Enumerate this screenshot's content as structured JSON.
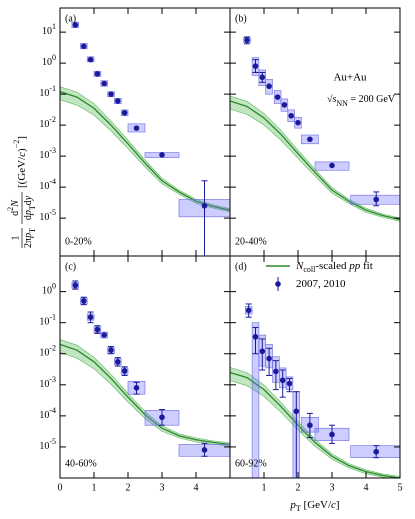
{
  "axes_labels": {
    "ylabel": {
      "num1": "1",
      "den1": [
        {
          "text": "2π"
        },
        {
          "text": "p",
          "italic": true
        },
        {
          "text": "T",
          "sub": true
        }
      ],
      "num2": [
        {
          "text": "d"
        },
        {
          "text": "2",
          "sup": true
        },
        {
          "text": "N",
          "italic": true
        }
      ],
      "den2": [
        {
          "text": "d"
        },
        {
          "text": "p",
          "italic": true
        },
        {
          "text": "T",
          "sub": true
        },
        {
          "text": "d"
        },
        {
          "text": "y",
          "italic": true
        }
      ],
      "unit": [
        {
          "text": "[(GeV/"
        },
        {
          "text": "c",
          "italic": true
        },
        {
          "text": ")"
        },
        {
          "text": "−2",
          "sup": true
        },
        {
          "text": "]"
        }
      ]
    },
    "xlabel": [
      {
        "text": "p",
        "italic": true
      },
      {
        "text": "T",
        "sub": true
      },
      {
        "text": " [GeV/"
      },
      {
        "text": "c",
        "italic": true
      },
      {
        "text": "]"
      }
    ]
  },
  "chart_data": [
    {
      "type": "scatter",
      "panel": "(a)",
      "centrality": "0-20%",
      "xlim": [
        0,
        5
      ],
      "ylim": [
        6e-07,
        60
      ],
      "x_tick_labels": false,
      "y_tick_labels": true,
      "xticks": [
        0,
        1,
        2,
        3,
        4
      ],
      "yticks": [
        {
          "value": 10,
          "label": "10^1"
        },
        {
          "value": 1,
          "label": "10^0"
        },
        {
          "value": 0.1,
          "label": "10^-1"
        },
        {
          "value": 0.01,
          "label": "10^-2"
        },
        {
          "value": 0.001,
          "label": "10^-3"
        },
        {
          "value": 0.0001,
          "label": "10^-4"
        },
        {
          "value": 1e-05,
          "label": "10^-5"
        }
      ],
      "x": [
        0.45,
        0.7,
        0.9,
        1.1,
        1.3,
        1.5,
        1.7,
        1.9,
        2.25,
        3.0,
        4.25
      ],
      "values": [
        17,
        3.5,
        1.3,
        0.45,
        0.22,
        0.1,
        0.06,
        0.025,
        0.008,
        0.0011,
        2.5e-05
      ],
      "box_halfwidth": [
        0.1,
        0.1,
        0.1,
        0.1,
        0.1,
        0.1,
        0.1,
        0.1,
        0.25,
        0.5,
        0.75
      ],
      "sys_low": [
        14,
        2.9,
        1.1,
        0.37,
        0.18,
        0.082,
        0.049,
        0.02,
        0.006,
        0.0009,
        1.1e-05
      ],
      "sys_high": [
        21,
        4.3,
        1.6,
        0.55,
        0.27,
        0.12,
        0.073,
        0.031,
        0.011,
        0.0013,
        4e-05
      ],
      "stat_low": [
        null,
        null,
        null,
        null,
        null,
        null,
        null,
        null,
        null,
        null,
        1e-07
      ],
      "stat_high": [
        null,
        null,
        null,
        null,
        null,
        null,
        null,
        null,
        null,
        null,
        0.00016
      ],
      "fit": {
        "x": [
          0,
          0.5,
          1,
          1.5,
          2,
          2.5,
          3,
          3.5,
          4,
          4.5,
          5
        ],
        "values": [
          0.12,
          0.08,
          0.035,
          0.01,
          0.0025,
          0.0006,
          0.00016,
          7e-05,
          3.5e-05,
          2.4e-05,
          1.8e-05
        ],
        "band_rel": [
          0.45,
          0.45,
          0.4,
          0.35,
          0.3,
          0.25,
          0.2,
          0.15,
          0.15,
          0.12,
          0.12
        ]
      }
    },
    {
      "type": "scatter",
      "panel": "(b)",
      "centrality": "20-40%",
      "xlim": [
        0,
        5
      ],
      "ylim": [
        6e-07,
        60
      ],
      "x_tick_labels": false,
      "y_tick_labels": false,
      "xticks": [
        1,
        2,
        3,
        4,
        5
      ],
      "yticks": [
        10,
        1,
        0.1,
        0.01,
        0.001,
        0.0001,
        1e-05
      ],
      "x": [
        0.5,
        0.75,
        0.95,
        1.15,
        1.4,
        1.6,
        1.8,
        2.0,
        2.35,
        3.0,
        4.3
      ],
      "values": [
        5.5,
        0.8,
        0.35,
        0.18,
        0.08,
        0.045,
        0.02,
        0.012,
        0.0035,
        0.0005,
        4e-05
      ],
      "box_halfwidth": [
        0.1,
        0.1,
        0.1,
        0.1,
        0.1,
        0.1,
        0.1,
        0.1,
        0.25,
        0.5,
        0.75
      ],
      "sys_low": [
        4.6,
        0.4,
        0.19,
        0.1,
        0.05,
        0.028,
        0.013,
        0.008,
        0.0025,
        0.00035,
        2.8e-05
      ],
      "sys_high": [
        6.6,
        1.5,
        0.6,
        0.3,
        0.13,
        0.07,
        0.031,
        0.018,
        0.0048,
        0.00065,
        5.5e-05
      ],
      "stat_low": [
        4.2,
        0.5,
        0.24,
        null,
        null,
        null,
        null,
        null,
        null,
        null,
        2.5e-05
      ],
      "stat_high": [
        7,
        1.3,
        0.5,
        null,
        null,
        null,
        null,
        null,
        null,
        null,
        7e-05
      ],
      "fit": {
        "x": [
          0,
          0.5,
          1,
          1.5,
          2,
          2.5,
          3,
          3.5,
          4,
          4.5,
          5
        ],
        "values": [
          0.06,
          0.04,
          0.017,
          0.005,
          0.0012,
          0.0003,
          8e-05,
          3.5e-05,
          1.8e-05,
          1.2e-05,
          9e-06
        ],
        "band_rel": [
          0.45,
          0.45,
          0.4,
          0.35,
          0.3,
          0.25,
          0.2,
          0.15,
          0.15,
          0.12,
          0.12
        ]
      },
      "annotation": "Au+Au",
      "energy": [
        {
          "text": "√"
        },
        {
          "text": "s",
          "italic": true
        },
        {
          "text": "NN",
          "sub": true
        },
        {
          "text": " = 200 GeV"
        }
      ]
    },
    {
      "type": "scatter",
      "panel": "(c)",
      "centrality": "40-60%",
      "xlim": [
        0,
        5
      ],
      "ylim": [
        1e-06,
        14
      ],
      "x_tick_labels": true,
      "y_tick_labels": true,
      "xticks": [
        0,
        1,
        2,
        3,
        4
      ],
      "yticks": [
        {
          "value": 1,
          "label": "10^0"
        },
        {
          "value": 0.1,
          "label": "10^-1"
        },
        {
          "value": 0.01,
          "label": "10^-2"
        },
        {
          "value": 0.001,
          "label": "10^-3"
        },
        {
          "value": 0.0001,
          "label": "10^-4"
        },
        {
          "value": 1e-05,
          "label": "10^-5"
        }
      ],
      "x": [
        0.45,
        0.7,
        0.9,
        1.1,
        1.3,
        1.5,
        1.7,
        1.9,
        2.25,
        3.0,
        4.25
      ],
      "values": [
        1.6,
        0.5,
        0.15,
        0.06,
        0.04,
        0.013,
        0.0055,
        0.0028,
        0.0008,
        9e-05,
        8e-06
      ],
      "box_halfwidth": [
        0.1,
        0.1,
        0.1,
        0.1,
        0.1,
        0.1,
        0.1,
        0.1,
        0.25,
        0.5,
        0.75
      ],
      "sys_low": [
        1.3,
        0.4,
        0.12,
        0.048,
        0.032,
        0.01,
        0.0044,
        0.0022,
        0.0005,
        5e-05,
        5e-06
      ],
      "sys_high": [
        2,
        0.62,
        0.19,
        0.075,
        0.05,
        0.016,
        0.007,
        0.0035,
        0.0013,
        0.00015,
        1.2e-05
      ],
      "stat_low": [
        1.2,
        0.38,
        0.1,
        0.045,
        null,
        0.01,
        0.004,
        0.002,
        0.0005,
        5e-05,
        5e-06
      ],
      "stat_high": [
        2.2,
        0.66,
        0.22,
        0.08,
        null,
        0.017,
        0.0075,
        0.0038,
        0.0012,
        0.00016,
        1.3e-05
      ],
      "fit": {
        "x": [
          0,
          0.5,
          1,
          1.5,
          2,
          2.5,
          3,
          3.5,
          4,
          4.5,
          5
        ],
        "values": [
          0.02,
          0.013,
          0.0055,
          0.0016,
          0.0004,
          0.00011,
          4e-05,
          2.3e-05,
          1.7e-05,
          1.4e-05,
          1.2e-05
        ],
        "band_rel": [
          0.45,
          0.45,
          0.4,
          0.35,
          0.3,
          0.25,
          0.2,
          0.15,
          0.15,
          0.12,
          0.12
        ]
      }
    },
    {
      "type": "scatter",
      "panel": "(d)",
      "centrality": "60-92%",
      "xlim": [
        0,
        5
      ],
      "ylim": [
        1e-06,
        14
      ],
      "x_tick_labels": true,
      "y_tick_labels": false,
      "xticks": [
        1,
        2,
        3,
        4,
        5
      ],
      "yticks": [
        1,
        0.1,
        0.01,
        0.001,
        0.0001,
        1e-05
      ],
      "x": [
        0.55,
        0.75,
        0.95,
        1.15,
        1.35,
        1.55,
        1.75,
        1.95,
        2.35,
        3.0,
        4.3
      ],
      "values": [
        0.25,
        0.035,
        0.012,
        0.007,
        0.0027,
        0.0014,
        0.0011,
        0.00014,
        5e-05,
        2.5e-05,
        7e-06
      ],
      "box_halfwidth": [
        0.1,
        0.1,
        0.1,
        0.1,
        0.1,
        0.1,
        0.1,
        0.1,
        0.25,
        0.5,
        0.75
      ],
      "sys_low": [
        0.19,
        1e-07,
        0.004,
        0.0035,
        0.0012,
        0.0008,
        0.0007,
        1e-07,
        3e-05,
        1.6e-05,
        4.5e-06
      ],
      "sys_high": [
        0.33,
        0.1,
        0.04,
        0.02,
        0.008,
        0.0035,
        0.0018,
        0.0006,
        9e-05,
        4e-05,
        1.1e-05
      ],
      "stat_low": [
        0.15,
        0.01,
        0.003,
        0.002,
        0.0007,
        0.0004,
        0.0006,
        1e-07,
        2e-05,
        1.3e-05,
        4.5e-06
      ],
      "stat_high": [
        0.4,
        0.07,
        0.03,
        0.015,
        0.006,
        0.003,
        0.0016,
        0.0006,
        0.00012,
        5e-05,
        1.1e-05
      ],
      "fit": {
        "x": [
          0,
          0.5,
          1,
          1.5,
          2,
          2.5,
          3,
          3.5,
          4,
          4.5,
          5
        ],
        "values": [
          0.0025,
          0.0017,
          0.0007,
          0.0002,
          5e-05,
          1.4e-05,
          5e-06,
          2.5e-06,
          1.6e-06,
          1.2e-06,
          1e-06
        ],
        "band_rel": [
          0.45,
          0.45,
          0.4,
          0.35,
          0.3,
          0.25,
          0.2,
          0.15,
          0.15,
          0.12,
          0.12
        ]
      },
      "legend": [
        {
          "kind": "line",
          "color": "#2a8a2a",
          "parts": [
            {
              "text": "N",
              "italic": true
            },
            {
              "text": "coll",
              "sub": true
            },
            {
              "text": "-scaled "
            },
            {
              "text": "pp",
              "italic": true
            },
            {
              "text": " fit"
            }
          ]
        },
        {
          "kind": "marker",
          "color": "#1a1a9a",
          "parts": [
            {
              "text": "2007, 2010"
            }
          ]
        }
      ]
    }
  ]
}
